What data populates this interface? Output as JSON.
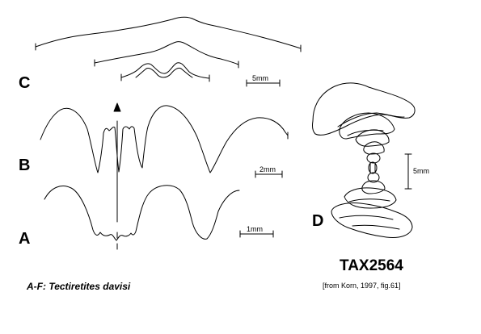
{
  "panels": {
    "a": {
      "label": "A",
      "scale_label": "1mm"
    },
    "b": {
      "label": "B",
      "scale_label": "2mm"
    },
    "c": {
      "label": "C",
      "scale_label": "5mm"
    },
    "d": {
      "label": "D",
      "scale_label": "5mm"
    }
  },
  "taxon_code": "TAX2564",
  "source": "[from Korn, 1997, fig.61]",
  "caption": "A-F: Tectiretites davisi"
}
